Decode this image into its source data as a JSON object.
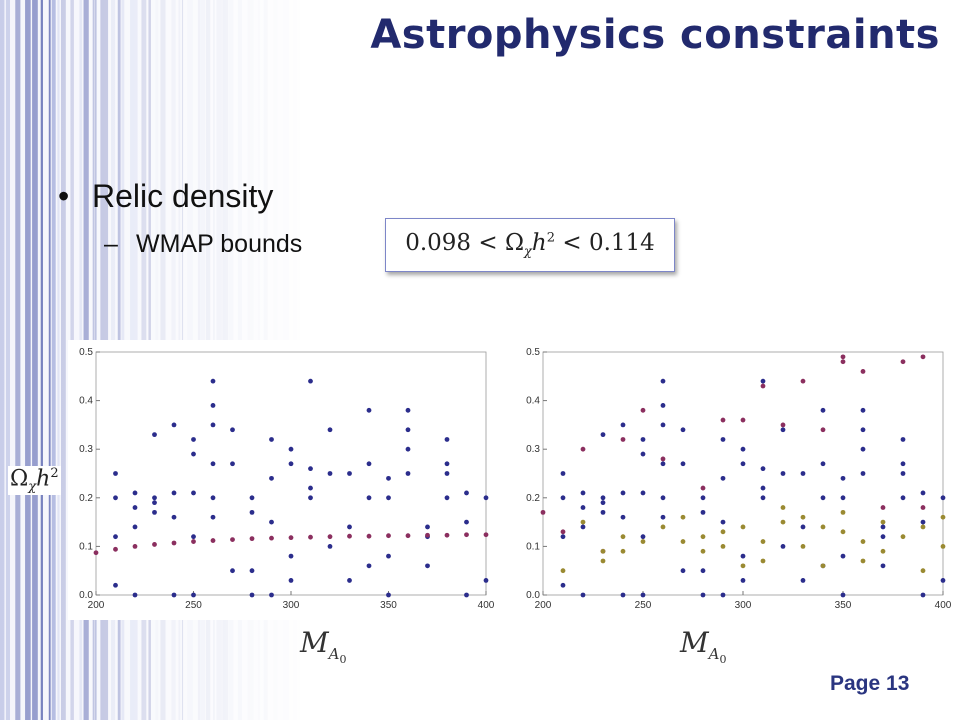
{
  "slide": {
    "title": "Astrophysics constraints",
    "bullet": "Relic density",
    "subbullet": "WMAP bounds",
    "formula": {
      "lower": "0.098",
      "upper": "0.114",
      "symbol_base": "Ω",
      "symbol_sub": "χ",
      "h": "h",
      "h_power": "2",
      "op": "<"
    },
    "page_label": "Page 13",
    "accent_color": "#222a6e"
  },
  "chart_data": [
    {
      "type": "scatter",
      "title": "",
      "xlabel": "M_{A_0}",
      "ylabel": "Ω_χ h^2",
      "xlim": [
        200,
        400
      ],
      "ylim": [
        0.0,
        0.5
      ],
      "x_ticks": [
        200,
        250,
        300,
        350,
        400
      ],
      "y_ticks": [
        0.0,
        0.1,
        0.2,
        0.3,
        0.4,
        0.5
      ],
      "series": [
        {
          "color": "#2b2d8c",
          "points": [
            [
              210,
              0.25
            ],
            [
              210,
              0.2
            ],
            [
              210,
              0.12
            ],
            [
              210,
              0.02
            ],
            [
              220,
              0.18
            ],
            [
              220,
              0.14
            ],
            [
              220,
              0.21
            ],
            [
              220,
              0.0
            ],
            [
              230,
              0.2
            ],
            [
              230,
              0.17
            ],
            [
              230,
              0.33
            ],
            [
              230,
              0.19
            ],
            [
              240,
              0.35
            ],
            [
              240,
              0.21
            ],
            [
              240,
              0.16
            ],
            [
              240,
              0.0
            ],
            [
              250,
              0.32
            ],
            [
              250,
              0.29
            ],
            [
              250,
              0.21
            ],
            [
              250,
              0.12
            ],
            [
              250,
              0.0
            ],
            [
              260,
              0.44
            ],
            [
              260,
              0.39
            ],
            [
              260,
              0.35
            ],
            [
              260,
              0.27
            ],
            [
              260,
              0.2
            ],
            [
              260,
              0.16
            ],
            [
              270,
              0.27
            ],
            [
              270,
              0.34
            ],
            [
              270,
              0.05
            ],
            [
              280,
              0.2
            ],
            [
              280,
              0.17
            ],
            [
              280,
              0.05
            ],
            [
              280,
              0.0
            ],
            [
              290,
              0.32
            ],
            [
              290,
              0.15
            ],
            [
              290,
              0.24
            ],
            [
              290,
              0.0
            ],
            [
              300,
              0.3
            ],
            [
              300,
              0.27
            ],
            [
              300,
              0.08
            ],
            [
              300,
              0.03
            ],
            [
              310,
              0.44
            ],
            [
              310,
              0.26
            ],
            [
              310,
              0.22
            ],
            [
              310,
              0.2
            ],
            [
              320,
              0.1
            ],
            [
              320,
              0.34
            ],
            [
              320,
              0.25
            ],
            [
              330,
              0.25
            ],
            [
              330,
              0.14
            ],
            [
              330,
              0.03
            ],
            [
              340,
              0.06
            ],
            [
              340,
              0.38
            ],
            [
              340,
              0.27
            ],
            [
              340,
              0.2
            ],
            [
              350,
              0.2
            ],
            [
              350,
              0.24
            ],
            [
              350,
              0.08
            ],
            [
              350,
              0.0
            ],
            [
              360,
              0.38
            ],
            [
              360,
              0.34
            ],
            [
              360,
              0.3
            ],
            [
              360,
              0.25
            ],
            [
              370,
              0.14
            ],
            [
              370,
              0.12
            ],
            [
              370,
              0.06
            ],
            [
              380,
              0.32
            ],
            [
              380,
              0.27
            ],
            [
              380,
              0.25
            ],
            [
              380,
              0.2
            ],
            [
              390,
              0.0
            ],
            [
              390,
              0.21
            ],
            [
              390,
              0.15
            ],
            [
              400,
              0.03
            ],
            [
              400,
              0.2
            ]
          ]
        },
        {
          "color": "#8b2f5f",
          "points": [
            [
              200,
              0.087
            ],
            [
              210,
              0.094
            ],
            [
              220,
              0.1
            ],
            [
              230,
              0.104
            ],
            [
              240,
              0.107
            ],
            [
              250,
              0.11
            ],
            [
              260,
              0.112
            ],
            [
              270,
              0.114
            ],
            [
              280,
              0.116
            ],
            [
              290,
              0.117
            ],
            [
              300,
              0.118
            ],
            [
              310,
              0.119
            ],
            [
              320,
              0.12
            ],
            [
              330,
              0.121
            ],
            [
              340,
              0.121
            ],
            [
              350,
              0.122
            ],
            [
              360,
              0.122
            ],
            [
              370,
              0.123
            ],
            [
              380,
              0.123
            ],
            [
              390,
              0.124
            ],
            [
              400,
              0.124
            ]
          ]
        }
      ]
    },
    {
      "type": "scatter",
      "title": "",
      "xlabel": "M_{A_0}",
      "ylabel": "",
      "xlim": [
        200,
        400
      ],
      "ylim": [
        0.0,
        0.5
      ],
      "x_ticks": [
        200,
        250,
        300,
        350,
        400
      ],
      "y_ticks": [
        0.0,
        0.1,
        0.2,
        0.3,
        0.4,
        0.5
      ],
      "series": [
        {
          "color": "#2b2d8c",
          "points": [
            [
              210,
              0.25
            ],
            [
              210,
              0.2
            ],
            [
              210,
              0.12
            ],
            [
              210,
              0.02
            ],
            [
              220,
              0.18
            ],
            [
              220,
              0.14
            ],
            [
              220,
              0.21
            ],
            [
              220,
              0.0
            ],
            [
              230,
              0.2
            ],
            [
              230,
              0.17
            ],
            [
              230,
              0.33
            ],
            [
              230,
              0.19
            ],
            [
              240,
              0.35
            ],
            [
              240,
              0.21
            ],
            [
              240,
              0.16
            ],
            [
              240,
              0.0
            ],
            [
              250,
              0.32
            ],
            [
              250,
              0.29
            ],
            [
              250,
              0.21
            ],
            [
              250,
              0.12
            ],
            [
              250,
              0.0
            ],
            [
              260,
              0.44
            ],
            [
              260,
              0.39
            ],
            [
              260,
              0.35
            ],
            [
              260,
              0.27
            ],
            [
              260,
              0.2
            ],
            [
              260,
              0.16
            ],
            [
              270,
              0.27
            ],
            [
              270,
              0.34
            ],
            [
              270,
              0.05
            ],
            [
              280,
              0.2
            ],
            [
              280,
              0.17
            ],
            [
              280,
              0.05
            ],
            [
              280,
              0.0
            ],
            [
              290,
              0.32
            ],
            [
              290,
              0.15
            ],
            [
              290,
              0.24
            ],
            [
              290,
              0.0
            ],
            [
              300,
              0.3
            ],
            [
              300,
              0.27
            ],
            [
              300,
              0.08
            ],
            [
              300,
              0.03
            ],
            [
              310,
              0.44
            ],
            [
              310,
              0.26
            ],
            [
              310,
              0.22
            ],
            [
              310,
              0.2
            ],
            [
              320,
              0.1
            ],
            [
              320,
              0.34
            ],
            [
              320,
              0.25
            ],
            [
              330,
              0.25
            ],
            [
              330,
              0.14
            ],
            [
              330,
              0.03
            ],
            [
              340,
              0.06
            ],
            [
              340,
              0.38
            ],
            [
              340,
              0.27
            ],
            [
              340,
              0.2
            ],
            [
              350,
              0.2
            ],
            [
              350,
              0.24
            ],
            [
              350,
              0.08
            ],
            [
              350,
              0.0
            ],
            [
              360,
              0.38
            ],
            [
              360,
              0.34
            ],
            [
              360,
              0.3
            ],
            [
              360,
              0.25
            ],
            [
              370,
              0.14
            ],
            [
              370,
              0.12
            ],
            [
              370,
              0.06
            ],
            [
              380,
              0.32
            ],
            [
              380,
              0.27
            ],
            [
              380,
              0.25
            ],
            [
              380,
              0.2
            ],
            [
              390,
              0.0
            ],
            [
              390,
              0.21
            ],
            [
              390,
              0.15
            ],
            [
              400,
              0.03
            ],
            [
              400,
              0.2
            ]
          ]
        },
        {
          "color": "#8b2f5f",
          "points": [
            [
              200,
              0.17
            ],
            [
              210,
              0.13
            ],
            [
              220,
              0.3
            ],
            [
              230,
              0.09
            ],
            [
              240,
              0.32
            ],
            [
              250,
              0.38
            ],
            [
              260,
              0.28
            ],
            [
              280,
              0.22
            ],
            [
              290,
              0.36
            ],
            [
              300,
              0.36
            ],
            [
              310,
              0.43
            ],
            [
              320,
              0.35
            ],
            [
              330,
              0.44
            ],
            [
              340,
              0.34
            ],
            [
              350,
              0.49
            ],
            [
              350,
              0.48
            ],
            [
              360,
              0.46
            ],
            [
              370,
              0.18
            ],
            [
              380,
              0.48
            ],
            [
              390,
              0.49
            ],
            [
              390,
              0.18
            ]
          ]
        },
        {
          "color": "#9a8a32",
          "points": [
            [
              210,
              0.05
            ],
            [
              220,
              0.15
            ],
            [
              230,
              0.09
            ],
            [
              230,
              0.07
            ],
            [
              240,
              0.12
            ],
            [
              240,
              0.09
            ],
            [
              250,
              0.11
            ],
            [
              260,
              0.14
            ],
            [
              270,
              0.16
            ],
            [
              270,
              0.11
            ],
            [
              280,
              0.09
            ],
            [
              280,
              0.12
            ],
            [
              290,
              0.13
            ],
            [
              290,
              0.1
            ],
            [
              300,
              0.06
            ],
            [
              300,
              0.14
            ],
            [
              310,
              0.07
            ],
            [
              310,
              0.11
            ],
            [
              320,
              0.15
            ],
            [
              320,
              0.18
            ],
            [
              330,
              0.16
            ],
            [
              330,
              0.1
            ],
            [
              340,
              0.14
            ],
            [
              340,
              0.06
            ],
            [
              350,
              0.17
            ],
            [
              350,
              0.13
            ],
            [
              360,
              0.11
            ],
            [
              360,
              0.07
            ],
            [
              370,
              0.15
            ],
            [
              370,
              0.09
            ],
            [
              380,
              0.12
            ],
            [
              390,
              0.14
            ],
            [
              390,
              0.05
            ],
            [
              400,
              0.1
            ],
            [
              400,
              0.16
            ]
          ]
        }
      ]
    }
  ]
}
